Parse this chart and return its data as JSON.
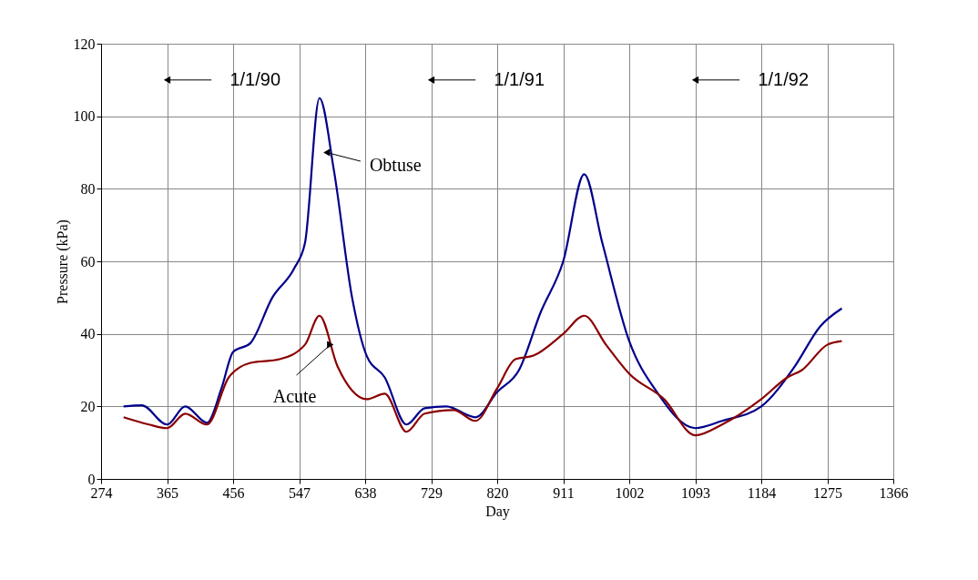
{
  "chart_data": {
    "type": "line",
    "xlabel": "Day",
    "ylabel": "Pressure (kPa)",
    "xlim": [
      274,
      1366
    ],
    "xticks": [
      274,
      365,
      456,
      547,
      638,
      729,
      820,
      911,
      1002,
      1093,
      1184,
      1275,
      1366
    ],
    "ylim": [
      0,
      120
    ],
    "yticks": [
      0,
      20,
      40,
      60,
      80,
      100,
      120
    ],
    "grid": true,
    "marker": "none",
    "line_style": "solid",
    "series": [
      {
        "color": "#00008b",
        "x": [
          305,
          330,
          365,
          390,
          420,
          440,
          456,
          480,
          510,
          540,
          555,
          575,
          595,
          620,
          640,
          665,
          695,
          720,
          750,
          790,
          820,
          850,
          880,
          911,
          940,
          965,
          1002,
          1040,
          1093,
          1130,
          1184,
          1230,
          1265,
          1295
        ],
        "values": [
          20,
          20.3,
          15,
          20,
          15.5,
          25,
          35,
          37.5,
          50,
          58,
          65,
          105,
          85,
          50,
          34,
          28,
          15,
          19.5,
          20,
          17,
          24,
          30,
          46,
          60,
          84,
          65,
          38,
          24,
          14,
          16,
          20,
          31,
          42,
          47
        ]
      },
      {
        "color": "#8b0000",
        "x": [
          305,
          340,
          365,
          390,
          420,
          450,
          480,
          520,
          555,
          575,
          600,
          640,
          665,
          695,
          720,
          760,
          790,
          820,
          845,
          870,
          911,
          940,
          970,
          1002,
          1050,
          1093,
          1130,
          1184,
          1220,
          1240,
          1275,
          1295
        ],
        "values": [
          17,
          15,
          14,
          18,
          15,
          28,
          32,
          33,
          37,
          45,
          31,
          22,
          23.5,
          13,
          18,
          19,
          16,
          25,
          33,
          34,
          40,
          45,
          37,
          29,
          22,
          12,
          15,
          22,
          28,
          30,
          37,
          38
        ]
      }
    ],
    "annotations": [
      {
        "text": "1/1/90",
        "x": 365,
        "y": 110
      },
      {
        "text": "1/1/91",
        "x": 729,
        "y": 110
      },
      {
        "text": "1/1/92",
        "x": 1093,
        "y": 110
      },
      {
        "text": "Obtuse",
        "x": 585,
        "y": 90
      },
      {
        "text": "Acute",
        "x": 590,
        "y": 37
      }
    ]
  }
}
